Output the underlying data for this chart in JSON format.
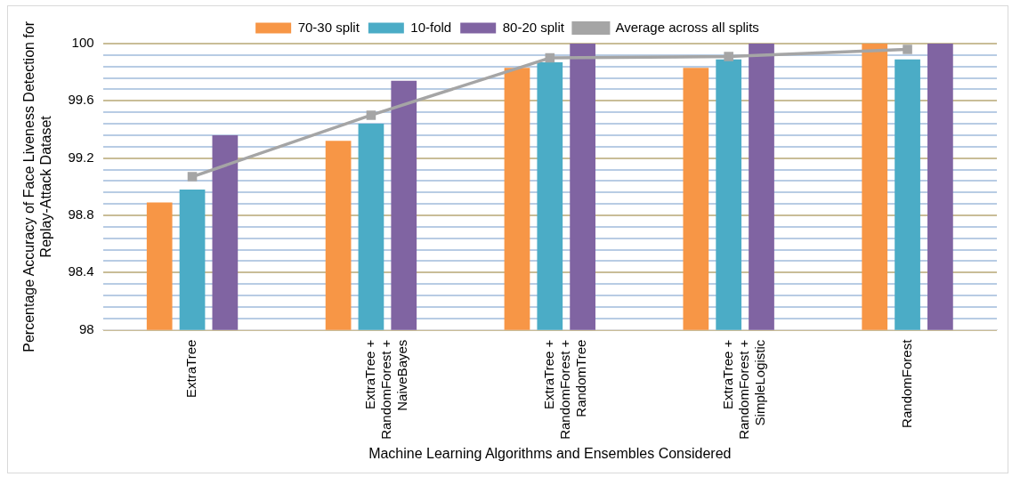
{
  "chart_data": {
    "type": "bar",
    "xlabel": "Machine Learning Algorithms and Ensembles Considered",
    "ylabel": "Percentage Accuracy of Face Liveness Detection for\nReplay-Attack Dataset",
    "categories": [
      "ExtraTree",
      "ExtraTree +\nRandomForest +\nNaiveBayes",
      "ExtraTree +\nRandomForest +\nRandomTree",
      "ExtraTree +\nRandomForest +\nSimpleLogistic",
      "RandomForest"
    ],
    "series": [
      {
        "name": "70-30 split",
        "color": "#f79646",
        "values": [
          98.89,
          99.32,
          99.83,
          99.83,
          100
        ]
      },
      {
        "name": "10-fold",
        "color": "#4bacc6",
        "values": [
          98.98,
          99.44,
          99.87,
          99.89,
          99.89
        ]
      },
      {
        "name": "80-20 split",
        "color": "#8064a2",
        "values": [
          99.36,
          99.74,
          100,
          100,
          100
        ]
      },
      {
        "name": "Average across all splits",
        "type": "line",
        "color": "#a5a5a5",
        "values": [
          99.07,
          99.5,
          99.9,
          99.91,
          99.96
        ]
      }
    ],
    "ylim": [
      98,
      100
    ],
    "yticks": [
      98,
      {
        "value": 98.08,
        "label": null
      },
      {
        "value": 98.16,
        "label": null
      },
      {
        "value": 98.24,
        "label": null
      },
      {
        "value": 98.32,
        "label": null
      },
      98.4,
      {
        "value": 98.48,
        "label": null
      },
      {
        "value": 98.56,
        "label": null
      },
      {
        "value": 98.64,
        "label": null
      },
      {
        "value": 98.72,
        "label": null
      },
      98.8,
      {
        "value": 98.88,
        "label": null
      },
      {
        "value": 98.96,
        "label": null
      },
      {
        "value": 99.04,
        "label": null
      },
      {
        "value": 99.12,
        "label": null
      },
      99.2,
      {
        "value": 99.28,
        "label": null
      },
      {
        "value": 99.36,
        "label": null
      },
      {
        "value": 99.44,
        "label": null
      },
      {
        "value": 99.52,
        "label": null
      },
      99.6,
      {
        "value": 99.68,
        "label": null
      },
      {
        "value": 99.76,
        "label": null
      },
      {
        "value": 99.84,
        "label": null
      },
      {
        "value": 99.92,
        "label": null
      },
      100
    ],
    "grid": "y",
    "legend": "top",
    "marker": "square"
  }
}
